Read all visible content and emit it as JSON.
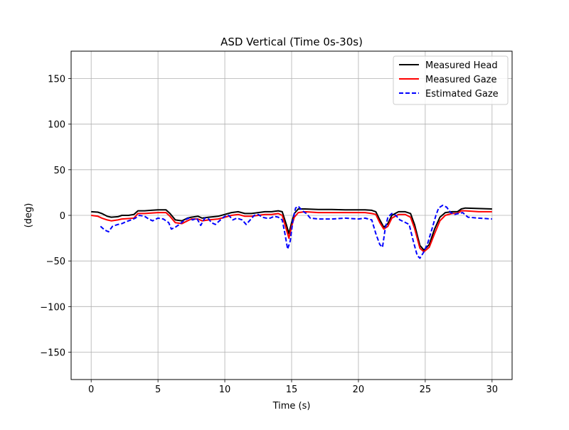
{
  "chart_data": {
    "type": "line",
    "title": "ASD Vertical (Time 0s-30s)",
    "xlabel": "Time (s)",
    "ylabel": "(deg)",
    "xlim": [
      -1.5,
      31.5
    ],
    "ylim": [
      -180,
      180
    ],
    "xticks": [
      0,
      5,
      10,
      15,
      20,
      25,
      30
    ],
    "yticks": [
      -150,
      -100,
      -50,
      0,
      50,
      100,
      150
    ],
    "xtick_labels": [
      "0",
      "5",
      "10",
      "15",
      "20",
      "25",
      "30"
    ],
    "ytick_labels": [
      "−150",
      "−100",
      "−50",
      "0",
      "50",
      "100",
      "150"
    ],
    "grid": true,
    "legend_position": "top-right",
    "series": [
      {
        "name": "Measured Head",
        "color": "#000000",
        "style": "solid",
        "points": [
          [
            0,
            4
          ],
          [
            0.5,
            3.5
          ],
          [
            0.8,
            2
          ],
          [
            1.2,
            -1
          ],
          [
            1.5,
            -2
          ],
          [
            2,
            -1.5
          ],
          [
            2.3,
            0
          ],
          [
            2.8,
            0
          ],
          [
            3.2,
            1
          ],
          [
            3.5,
            5
          ],
          [
            4,
            5
          ],
          [
            4.5,
            5.5
          ],
          [
            5,
            6
          ],
          [
            5.6,
            6
          ],
          [
            5.9,
            2
          ],
          [
            6.3,
            -5
          ],
          [
            6.8,
            -6
          ],
          [
            7.2,
            -3
          ],
          [
            7.5,
            -2
          ],
          [
            8,
            -1
          ],
          [
            8.3,
            -3
          ],
          [
            8.8,
            -2
          ],
          [
            9.5,
            -1
          ],
          [
            10,
            1
          ],
          [
            10.5,
            3
          ],
          [
            11,
            4
          ],
          [
            11.5,
            2
          ],
          [
            12,
            2
          ],
          [
            12.5,
            3
          ],
          [
            13,
            4
          ],
          [
            13.5,
            4
          ],
          [
            14,
            5
          ],
          [
            14.3,
            4
          ],
          [
            14.6,
            -10
          ],
          [
            14.8,
            -20
          ],
          [
            15,
            -8
          ],
          [
            15.2,
            2
          ],
          [
            15.5,
            7
          ],
          [
            16,
            7
          ],
          [
            17,
            6.5
          ],
          [
            18,
            6.5
          ],
          [
            19,
            6
          ],
          [
            20,
            6
          ],
          [
            20.5,
            6
          ],
          [
            21,
            5.5
          ],
          [
            21.3,
            4
          ],
          [
            21.6,
            -5
          ],
          [
            21.9,
            -13
          ],
          [
            22.2,
            -9
          ],
          [
            22.5,
            0
          ],
          [
            23,
            4
          ],
          [
            23.5,
            4
          ],
          [
            23.9,
            2
          ],
          [
            24.2,
            -10
          ],
          [
            24.6,
            -33
          ],
          [
            24.9,
            -38
          ],
          [
            25.3,
            -32
          ],
          [
            25.7,
            -15
          ],
          [
            26.1,
            -2
          ],
          [
            26.5,
            3
          ],
          [
            27,
            4
          ],
          [
            27.4,
            4
          ],
          [
            27.7,
            7
          ],
          [
            28,
            8
          ],
          [
            29,
            7.5
          ],
          [
            30,
            7
          ]
        ]
      },
      {
        "name": "Measured Gaze",
        "color": "#ff0000",
        "style": "solid",
        "points": [
          [
            0,
            0
          ],
          [
            0.5,
            -1
          ],
          [
            0.8,
            -3
          ],
          [
            1.2,
            -5
          ],
          [
            1.5,
            -6
          ],
          [
            2,
            -5
          ],
          [
            2.3,
            -4
          ],
          [
            2.8,
            -3.5
          ],
          [
            3.2,
            -3
          ],
          [
            3.5,
            2
          ],
          [
            4,
            2
          ],
          [
            4.5,
            2.5
          ],
          [
            5,
            3
          ],
          [
            5.6,
            3
          ],
          [
            5.9,
            -1
          ],
          [
            6.3,
            -8
          ],
          [
            6.8,
            -9
          ],
          [
            7.2,
            -6
          ],
          [
            7.5,
            -4
          ],
          [
            8,
            -4
          ],
          [
            8.3,
            -6
          ],
          [
            8.8,
            -5
          ],
          [
            9.5,
            -4
          ],
          [
            10,
            -2
          ],
          [
            10.5,
            0
          ],
          [
            11,
            1
          ],
          [
            11.5,
            -1
          ],
          [
            12,
            -1
          ],
          [
            12.5,
            0
          ],
          [
            13,
            1
          ],
          [
            13.5,
            1
          ],
          [
            14,
            2
          ],
          [
            14.3,
            0
          ],
          [
            14.6,
            -15
          ],
          [
            14.8,
            -25
          ],
          [
            15,
            -12
          ],
          [
            15.2,
            -2
          ],
          [
            15.5,
            3
          ],
          [
            16,
            4
          ],
          [
            17,
            3
          ],
          [
            18,
            3
          ],
          [
            19,
            3
          ],
          [
            20,
            3
          ],
          [
            20.5,
            3
          ],
          [
            21,
            2
          ],
          [
            21.3,
            1
          ],
          [
            21.6,
            -8
          ],
          [
            21.9,
            -15
          ],
          [
            22.2,
            -12
          ],
          [
            22.5,
            -3
          ],
          [
            23,
            1
          ],
          [
            23.5,
            1
          ],
          [
            23.9,
            -2
          ],
          [
            24.2,
            -14
          ],
          [
            24.6,
            -36
          ],
          [
            24.9,
            -40
          ],
          [
            25.3,
            -35
          ],
          [
            25.7,
            -20
          ],
          [
            26.1,
            -6
          ],
          [
            26.5,
            0
          ],
          [
            27,
            2
          ],
          [
            27.4,
            2
          ],
          [
            27.7,
            5
          ],
          [
            28,
            5
          ],
          [
            29,
            4
          ],
          [
            30,
            4
          ]
        ]
      },
      {
        "name": "Estimated Gaze",
        "color": "#0000ff",
        "style": "dashed",
        "points": [
          [
            0.7,
            -12
          ],
          [
            1,
            -16
          ],
          [
            1.3,
            -18
          ],
          [
            1.6,
            -12
          ],
          [
            2,
            -10
          ],
          [
            2.3,
            -9
          ],
          [
            2.6,
            -7
          ],
          [
            3,
            -5
          ],
          [
            3.3,
            -3
          ],
          [
            3.6,
            0
          ],
          [
            4,
            -1
          ],
          [
            4.3,
            -4
          ],
          [
            4.6,
            -6
          ],
          [
            5,
            -3
          ],
          [
            5.4,
            -4
          ],
          [
            5.8,
            -8
          ],
          [
            6,
            -15
          ],
          [
            6.3,
            -13
          ],
          [
            6.6,
            -10
          ],
          [
            7,
            -5
          ],
          [
            7.3,
            -3
          ],
          [
            7.6,
            -5
          ],
          [
            7.9,
            -3
          ],
          [
            8.2,
            -11
          ],
          [
            8.5,
            -3
          ],
          [
            8.8,
            -4
          ],
          [
            9,
            -8
          ],
          [
            9.3,
            -10
          ],
          [
            9.6,
            -6
          ],
          [
            10,
            -1
          ],
          [
            10.3,
            0
          ],
          [
            10.6,
            -5
          ],
          [
            10.9,
            -3
          ],
          [
            11.3,
            -5
          ],
          [
            11.6,
            -10
          ],
          [
            11.9,
            -5
          ],
          [
            12.2,
            0
          ],
          [
            12.5,
            1
          ],
          [
            12.8,
            -2
          ],
          [
            13.1,
            -3
          ],
          [
            13.4,
            -3
          ],
          [
            13.7,
            -1
          ],
          [
            14,
            -2
          ],
          [
            14.3,
            -5
          ],
          [
            14.5,
            -20
          ],
          [
            14.7,
            -37
          ],
          [
            14.9,
            -28
          ],
          [
            15.1,
            -5
          ],
          [
            15.3,
            8
          ],
          [
            15.5,
            10
          ],
          [
            15.8,
            5
          ],
          [
            16.1,
            2
          ],
          [
            16.4,
            -3
          ],
          [
            17,
            -4
          ],
          [
            18,
            -4
          ],
          [
            19,
            -3
          ],
          [
            20,
            -4
          ],
          [
            20.5,
            -3
          ],
          [
            21,
            -5
          ],
          [
            21.3,
            -20
          ],
          [
            21.6,
            -32
          ],
          [
            21.8,
            -35
          ],
          [
            22,
            -15
          ],
          [
            22.2,
            -2
          ],
          [
            22.5,
            2
          ],
          [
            22.8,
            0
          ],
          [
            23.1,
            -5
          ],
          [
            23.4,
            -7
          ],
          [
            23.8,
            -10
          ],
          [
            24.1,
            -28
          ],
          [
            24.4,
            -44
          ],
          [
            24.6,
            -47
          ],
          [
            24.9,
            -40
          ],
          [
            25.2,
            -30
          ],
          [
            25.5,
            -15
          ],
          [
            25.8,
            0
          ],
          [
            26,
            8
          ],
          [
            26.3,
            11
          ],
          [
            26.6,
            9
          ],
          [
            26.9,
            3
          ],
          [
            27.2,
            1
          ],
          [
            27.5,
            2
          ],
          [
            27.8,
            3
          ],
          [
            28.2,
            -2
          ],
          [
            29,
            -3
          ],
          [
            30,
            -4
          ]
        ]
      }
    ]
  }
}
